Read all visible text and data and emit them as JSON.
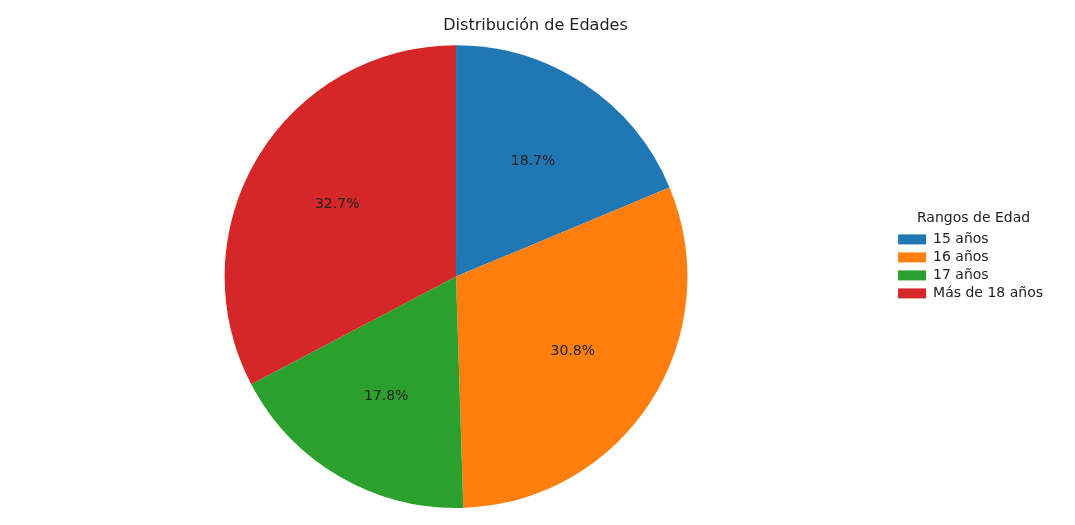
{
  "chart_data": {
    "type": "pie",
    "title": "Distribución de Edades",
    "legend_title": "Rangos de Edad",
    "legend": "right",
    "value_labels": [
      "18.7%",
      "30.8%",
      "17.8%",
      "32.7%"
    ],
    "categories": [
      "15 años",
      "16 años",
      "17 años",
      "Más de 18 años"
    ],
    "values": [
      18.7,
      30.8,
      17.8,
      32.7
    ],
    "colors": [
      "#1f77b4",
      "#ff7f0e",
      "#2ca02c",
      "#d62728"
    ]
  }
}
